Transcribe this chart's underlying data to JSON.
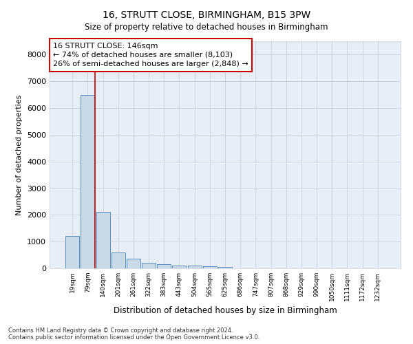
{
  "title": "16, STRUTT CLOSE, BIRMINGHAM, B15 3PW",
  "subtitle": "Size of property relative to detached houses in Birmingham",
  "xlabel": "Distribution of detached houses by size in Birmingham",
  "ylabel": "Number of detached properties",
  "categories": [
    "19sqm",
    "79sqm",
    "140sqm",
    "201sqm",
    "261sqm",
    "322sqm",
    "383sqm",
    "443sqm",
    "504sqm",
    "565sqm",
    "625sqm",
    "686sqm",
    "747sqm",
    "807sqm",
    "868sqm",
    "929sqm",
    "990sqm",
    "1050sqm",
    "1111sqm",
    "1172sqm",
    "1232sqm"
  ],
  "values": [
    1200,
    6500,
    2100,
    600,
    350,
    200,
    150,
    100,
    100,
    70,
    60,
    0,
    0,
    0,
    0,
    0,
    0,
    0,
    0,
    0,
    0
  ],
  "bar_color": "#c9d9e8",
  "bar_edge_color": "#5a8fc0",
  "property_line_color": "#cc0000",
  "property_line_index": 2,
  "annotation_line1": "16 STRUTT CLOSE: 146sqm",
  "annotation_line2": "← 74% of detached houses are smaller (8,103)",
  "annotation_line3": "26% of semi-detached houses are larger (2,848) →",
  "annotation_box_facecolor": "#ffffff",
  "annotation_box_edgecolor": "#cc0000",
  "ylim": [
    0,
    8500
  ],
  "yticks": [
    0,
    1000,
    2000,
    3000,
    4000,
    5000,
    6000,
    7000,
    8000
  ],
  "footer1": "Contains HM Land Registry data © Crown copyright and database right 2024.",
  "footer2": "Contains public sector information licensed under the Open Government Licence v3.0.",
  "background_color": "#ffffff",
  "grid_color": "#c8d0db",
  "plot_bg_color": "#e8eef5"
}
